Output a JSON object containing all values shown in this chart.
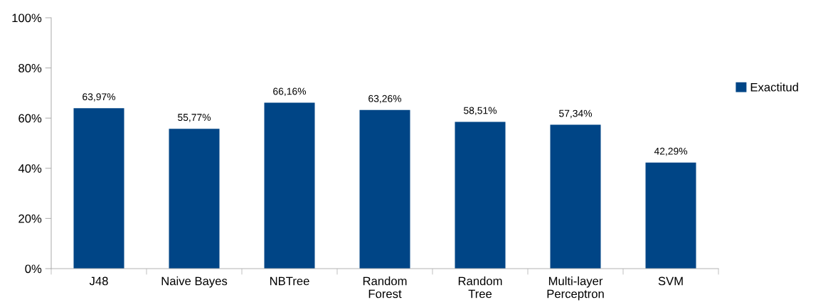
{
  "chart_data": {
    "type": "bar",
    "categories": [
      "J48",
      "Naive Bayes",
      "NBTree",
      "Random\nForest",
      "Random\nTree",
      "Multi-layer\nPerceptron",
      "SVM"
    ],
    "series": [
      {
        "name": "Exactitud",
        "color": "#004586",
        "values": [
          63.97,
          55.77,
          66.16,
          63.26,
          58.51,
          57.34,
          42.29
        ],
        "value_labels": [
          "63,97%",
          "55,77%",
          "66,16%",
          "63,26%",
          "58,51%",
          "57,34%",
          "42,29%"
        ]
      }
    ],
    "ylim": [
      0,
      100
    ],
    "yticks": [
      {
        "value": 0,
        "label": "0%"
      },
      {
        "value": 20,
        "label": "20%"
      },
      {
        "value": 40,
        "label": "40%"
      },
      {
        "value": 60,
        "label": "60%"
      },
      {
        "value": 80,
        "label": "80%"
      },
      {
        "value": 100,
        "label": "100%"
      }
    ],
    "grid": false,
    "legend": "right"
  }
}
